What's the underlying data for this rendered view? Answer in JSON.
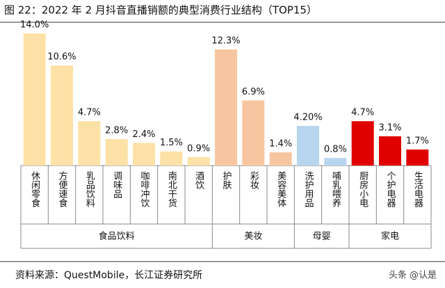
{
  "chart_data": {
    "type": "bar",
    "title": "图 22：2022 年 2 月抖音直播销额的典型消费行业结构（TOP15）",
    "source": "资料来源：QuestMobile，长江证券研究所",
    "watermark": "头条 @认是",
    "groups": [
      {
        "name": "食品饮料",
        "color": "#fde1a6",
        "categories": [
          "休闲零食",
          "方便速食",
          "乳品饮料",
          "调味品",
          "咖啡冲饮",
          "南北干货",
          "酒饮"
        ],
        "values": [
          14.0,
          10.6,
          4.7,
          2.8,
          2.4,
          1.5,
          0.9
        ],
        "value_labels": [
          "14.0%",
          "10.6%",
          "4.7%",
          "2.8%",
          "2.4%",
          "1.5%",
          "0.9%"
        ]
      },
      {
        "name": "美妆",
        "color": "#f7c6a0",
        "categories": [
          "护肤",
          "彩妆",
          "美容美体"
        ],
        "values": [
          12.3,
          6.9,
          1.4
        ],
        "value_labels": [
          "12.3%",
          "6.9%",
          "1.4%"
        ]
      },
      {
        "name": "母婴",
        "color": "#b8d5ef",
        "categories": [
          "洗护用品",
          "哺乳喂养"
        ],
        "values": [
          4.2,
          0.8
        ],
        "value_labels": [
          "4.20%",
          "0.8%"
        ]
      },
      {
        "name": "家电",
        "color": "#e00000",
        "categories": [
          "厨房小电",
          "个护电器",
          "生活电器"
        ],
        "values": [
          4.7,
          3.1,
          1.7
        ],
        "value_labels": [
          "4.7%",
          "3.1%",
          "1.7%"
        ]
      }
    ]
  }
}
